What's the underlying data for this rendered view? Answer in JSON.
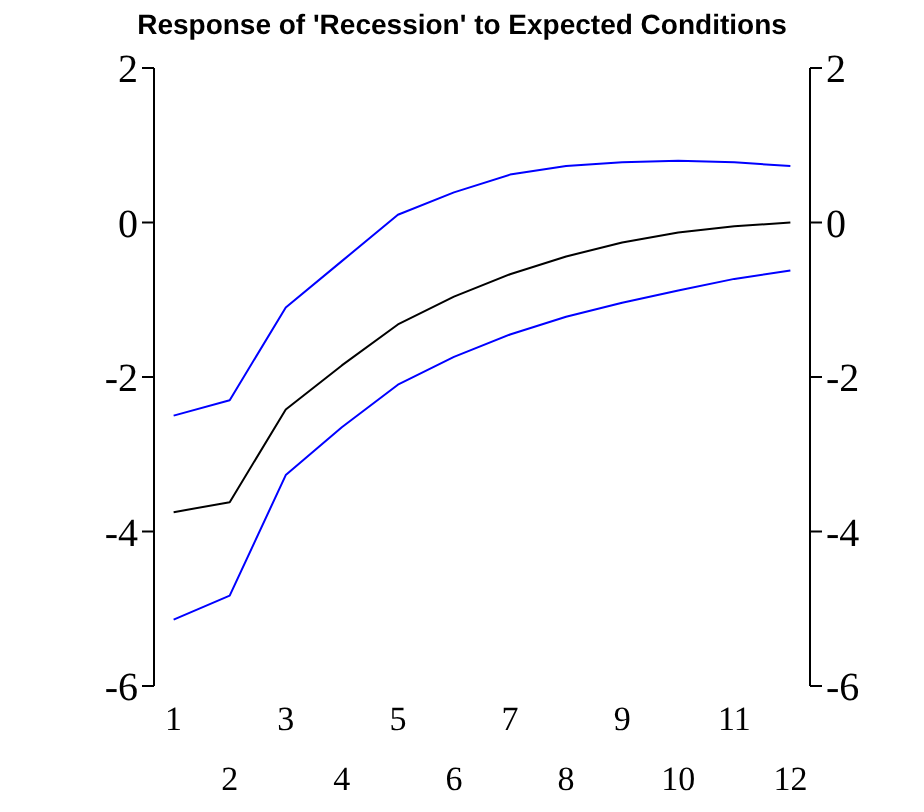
{
  "chart_data": {
    "type": "line",
    "title": "Response of 'Recession' to Expected Conditions",
    "x": [
      1,
      2,
      3,
      4,
      5,
      6,
      7,
      8,
      9,
      10,
      11,
      12
    ],
    "series": [
      {
        "color": "#0000ff",
        "values": [
          -2.5,
          -2.3,
          -1.1,
          -0.5,
          0.1,
          0.39,
          0.62,
          0.73,
          0.78,
          0.8,
          0.78,
          0.73
        ]
      },
      {
        "color": "#000000",
        "values": [
          -3.75,
          -3.62,
          -2.42,
          -1.85,
          -1.32,
          -0.96,
          -0.67,
          -0.44,
          -0.26,
          -0.13,
          -0.05,
          0
        ]
      },
      {
        "color": "#0000ff",
        "values": [
          -5.14,
          -4.83,
          -3.27,
          -2.65,
          -2.1,
          -1.74,
          -1.45,
          -1.22,
          -1.04,
          -0.88,
          -0.73,
          -0.62
        ]
      }
    ],
    "xlim": [
      0.65,
      12.35
    ],
    "xticks": [
      1,
      3,
      5,
      7,
      9,
      11
    ],
    "x2lim": [
      0.65,
      12.35
    ],
    "x2ticks": [
      2,
      4,
      6,
      8,
      10,
      12
    ],
    "ylim": [
      -6,
      2
    ],
    "yticks": [
      -6,
      -4,
      -2,
      0,
      2
    ],
    "y2lim": [
      -6,
      2
    ],
    "y2ticks": [
      -6,
      -4,
      -2,
      0,
      2
    ],
    "grid": false,
    "legend": false,
    "marker": "none",
    "line_style": "solid"
  }
}
